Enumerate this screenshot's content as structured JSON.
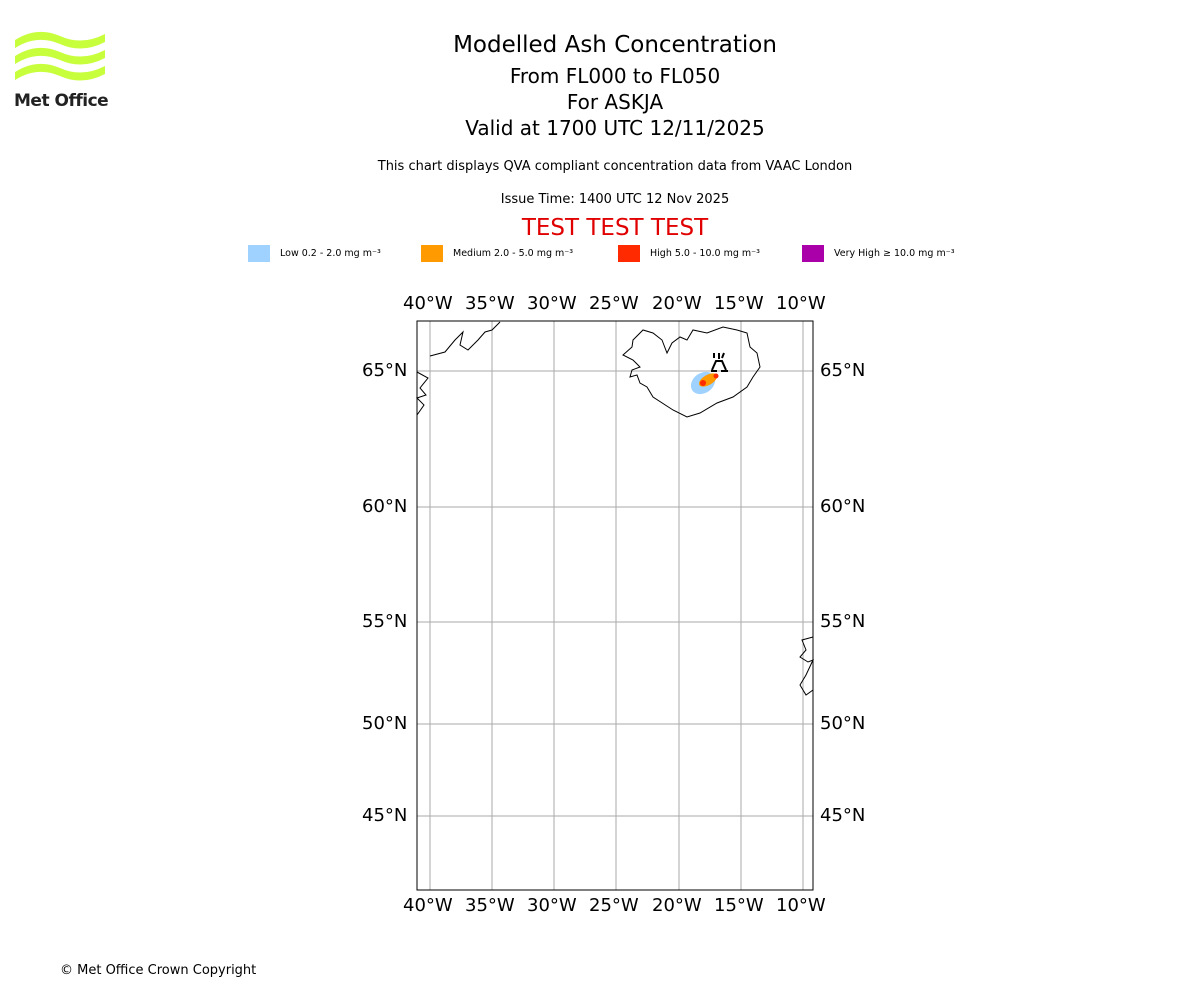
{
  "logo": {
    "text": "Met Office",
    "color": "#c8ff3c"
  },
  "header": {
    "title": "Modelled Ash Concentration",
    "levels": "From FL000 to FL050",
    "volcano": "For ASKJA",
    "valid": "Valid at 1700 UTC 12/11/2025",
    "note": "This chart displays QVA compliant concentration data from VAAC London",
    "issue": "Issue Time: 1400 UTC 12 Nov 2025",
    "test": "TEST TEST TEST"
  },
  "legend": [
    {
      "label": "Low 0.2 - 2.0 mg m⁻³",
      "color": "#a0d2ff"
    },
    {
      "label": "Medium 2.0 - 5.0 mg m⁻³",
      "color": "#ff9a00"
    },
    {
      "label": "High 5.0 - 10.0 mg m⁻³",
      "color": "#ff2a00"
    },
    {
      "label": "Very High ≥ 10.0 mg m⁻³",
      "color": "#aa00aa"
    }
  ],
  "axes": {
    "lon": [
      "40°W",
      "35°W",
      "30°W",
      "25°W",
      "20°W",
      "15°W",
      "10°W"
    ],
    "lat": [
      "65°N",
      "60°N",
      "55°N",
      "50°N",
      "45°N"
    ]
  },
  "footer": "© Met Office Crown Copyright"
}
